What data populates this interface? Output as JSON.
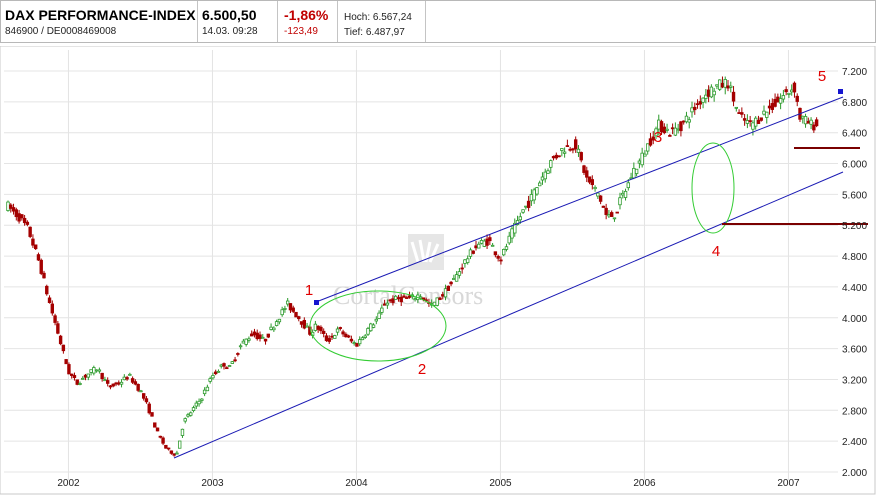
{
  "header": {
    "name": "DAX PERFORMANCE-INDEX",
    "ids": "846900  /  DE0008469008",
    "price": "6.500,50",
    "datetime": "14.03. 09:28",
    "change_pct": "-1,86%",
    "change_abs": "-123,49",
    "high": "Hoch: 6.567,24",
    "low": "Tief: 6.487,97"
  },
  "watermark": "CortalConsors",
  "chart_data": {
    "type": "line",
    "title": "",
    "xlabel": "",
    "ylabel": "",
    "x_ticks": [
      "2002",
      "2003",
      "2004",
      "2005",
      "2006",
      "2007"
    ],
    "x_tick_times": [
      2002.0,
      2003.0,
      2004.0,
      2005.0,
      2006.0,
      2007.0
    ],
    "xlim": [
      2001.58,
      2007.33
    ],
    "y_ticks": [
      "2.000",
      "2.400",
      "2.800",
      "3.200",
      "3.600",
      "4.000",
      "4.400",
      "4.800",
      "5.200",
      "5.600",
      "6.000",
      "6.400",
      "6.800",
      "7.200"
    ],
    "y_tick_values": [
      2000,
      2400,
      2800,
      3200,
      3600,
      4000,
      4400,
      4800,
      5200,
      5600,
      6000,
      6400,
      6800,
      7200
    ],
    "ylim": [
      2000,
      7200
    ],
    "grid": true,
    "series": [
      {
        "type": "price",
        "x": [
          2001.58,
          2001.66,
          2001.72,
          2001.8,
          2001.86,
          2001.92,
          2002.0,
          2002.06,
          2002.12,
          2002.2,
          2002.28,
          2002.35,
          2002.42,
          2002.5,
          2002.55,
          2002.62,
          2002.68,
          2002.75,
          2002.8,
          2002.86,
          2002.92,
          2003.0,
          2003.08,
          2003.12,
          2003.2,
          2003.28,
          2003.36,
          2003.44,
          2003.52,
          2003.6,
          2003.68,
          2003.72,
          2003.8,
          2003.88,
          2003.96,
          2004.0,
          2004.08,
          2004.15,
          2004.2,
          2004.3,
          2004.38,
          2004.44,
          2004.52,
          2004.6,
          2004.68,
          2004.76,
          2004.84,
          2004.92,
          2005.0,
          2005.08,
          2005.16,
          2005.2,
          2005.28,
          2005.36,
          2005.44,
          2005.52,
          2005.6,
          2005.68,
          2005.74,
          2005.8,
          2005.84,
          2005.88,
          2005.92,
          2005.96,
          2006.0,
          2006.04,
          2006.1,
          2006.18,
          2006.26,
          2006.34,
          2006.42,
          2006.5,
          2006.58,
          2006.66,
          2006.74,
          2006.8,
          2006.86,
          2006.92,
          2006.98,
          2007.04,
          2007.08,
          2007.12,
          2007.16,
          2007.2
        ],
        "y": [
          5450,
          5300,
          5150,
          4700,
          4250,
          3850,
          3300,
          3150,
          3250,
          3350,
          3100,
          3150,
          3250,
          3050,
          2850,
          2500,
          2300,
          2220,
          2650,
          2800,
          2950,
          3250,
          3400,
          3350,
          3650,
          3800,
          3700,
          3950,
          4180,
          4000,
          3800,
          3900,
          3700,
          3850,
          3700,
          3650,
          3850,
          4000,
          4200,
          4250,
          4250,
          4300,
          4150,
          4300,
          4500,
          4750,
          4950,
          5000,
          4750,
          5100,
          5400,
          5500,
          5800,
          6050,
          6200,
          6250,
          5800,
          5600,
          5300,
          5350,
          5550,
          5700,
          5900,
          6000,
          6150,
          6300,
          6500,
          6400,
          6500,
          6700,
          6900,
          7000,
          7050,
          6600,
          6500,
          6600,
          6700,
          6800,
          6900,
          7000,
          6600,
          6550,
          6500,
          6500
        ]
      }
    ],
    "annotations": [
      "1",
      "2",
      "3",
      "4",
      "5"
    ]
  }
}
